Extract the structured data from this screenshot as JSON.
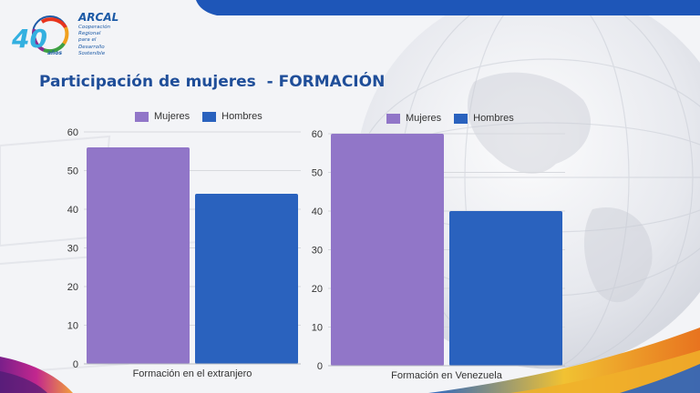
{
  "colors": {
    "accent": "#1f4e99",
    "mujeres": "#9176c8",
    "hombres": "#2a62be"
  },
  "logo": {
    "number": "40",
    "brand": "ARCAL",
    "subtitle_lines": [
      "Cooperación",
      "Regional",
      "para el",
      "Desarrollo",
      "Sostenible"
    ],
    "anos": "años"
  },
  "title": "Participación de mujeres  - FORMACIÓN",
  "chart_data": [
    {
      "type": "bar",
      "categories": [
        "Formación en el extranjero"
      ],
      "series": [
        {
          "name": "Mujeres",
          "values": [
            56
          ]
        },
        {
          "name": "Hombres",
          "values": [
            44
          ]
        }
      ],
      "yticks": [
        "0",
        "10",
        "20",
        "30",
        "40",
        "50",
        "60"
      ],
      "ylim": [
        0,
        60
      ],
      "grid": true,
      "legend": "top"
    },
    {
      "type": "bar",
      "categories": [
        "Formación en Venezuela"
      ],
      "series": [
        {
          "name": "Mujeres",
          "values": [
            60
          ]
        },
        {
          "name": "Hombres",
          "values": [
            40
          ]
        }
      ],
      "yticks": [
        "0",
        "10",
        "20",
        "30",
        "40",
        "50",
        "60"
      ],
      "ylim": [
        0,
        60
      ],
      "grid": true,
      "legend": "top"
    }
  ]
}
